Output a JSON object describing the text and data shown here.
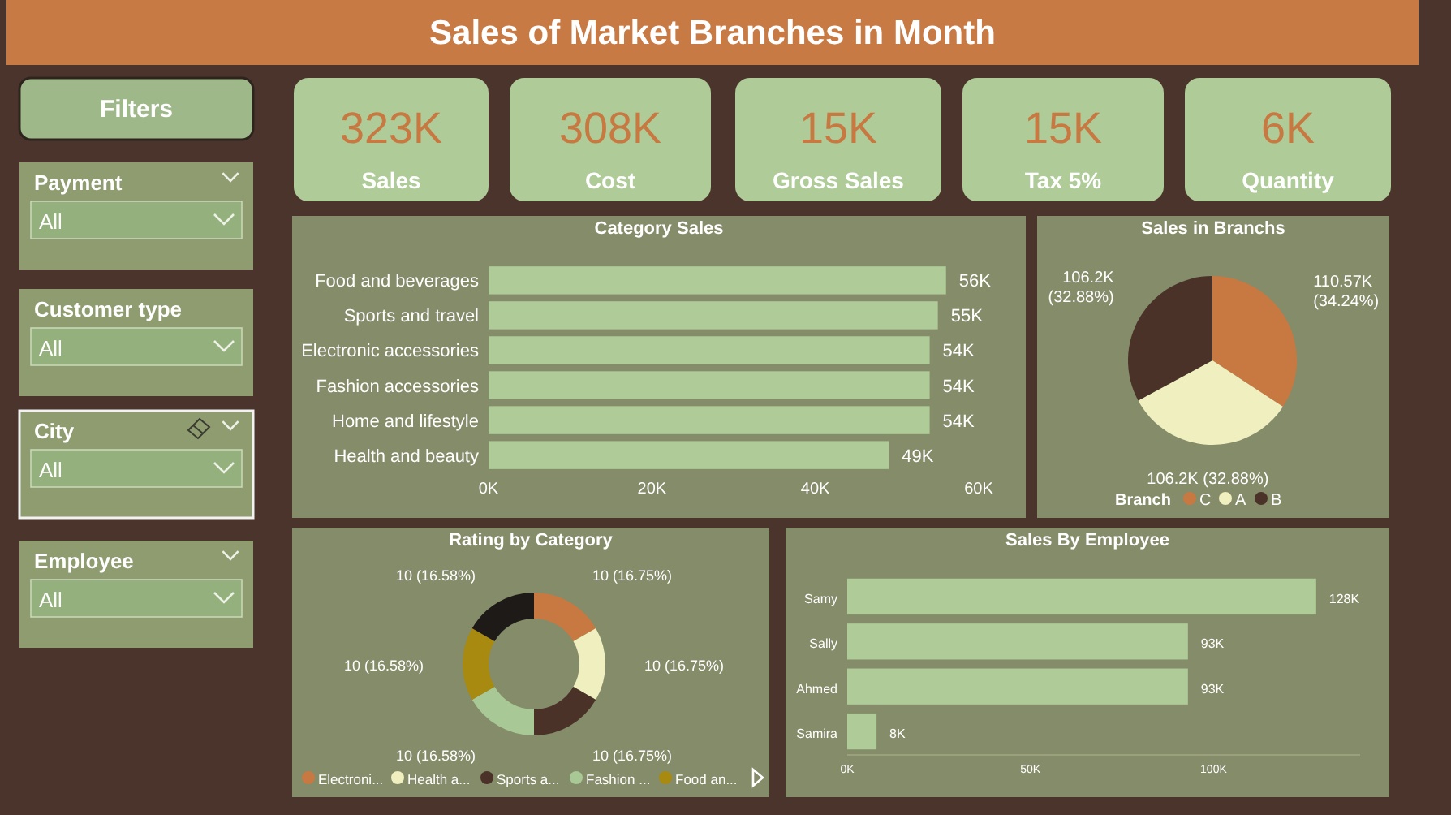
{
  "chart_data": [
    {
      "type": "other",
      "title": "Sales of Market Branches in Month"
    },
    {
      "type": "other",
      "title": "Filters",
      "annotations": [
        "Payment",
        "All",
        "Customer type",
        "All",
        "City",
        "All",
        "Employee",
        "All"
      ]
    },
    {
      "type": "other",
      "annotations": [
        "323K",
        "Sales",
        "308K",
        "Cost",
        "15K",
        "Gross Sales",
        "15K",
        "Tax 5%",
        "6K",
        "Quantity"
      ]
    },
    {
      "type": "bar",
      "orientation": "horizontal",
      "title": "Category Sales",
      "categories": [
        "Food and beverages",
        "Sports and travel",
        "Electronic accessories",
        "Fashion accessories",
        "Home and lifestyle",
        "Health and beauty"
      ],
      "values": [
        56000,
        55000,
        54000,
        54000,
        54000,
        49000
      ],
      "value_labels": [
        "56K",
        "55K",
        "54K",
        "54K",
        "54K",
        "49K"
      ],
      "color": "#aecb98",
      "xlim": [
        0,
        60000
      ],
      "xticks": [
        {
          "value": 0,
          "label": "0K"
        },
        {
          "value": 20000,
          "label": "20K"
        },
        {
          "value": 40000,
          "label": "40K"
        },
        {
          "value": 60000,
          "label": "60K"
        }
      ],
      "grid": false
    },
    {
      "type": "pie",
      "title": "Sales in Branchs",
      "legend_title": "Branch",
      "legend": "bottom",
      "categories": [
        "C",
        "A",
        "B"
      ],
      "values": [
        110570,
        106200,
        106200
      ],
      "value_labels": [
        "110.57K (34.24%)",
        "106.2K (32.88%)",
        "106.2K (32.88%)"
      ],
      "colors": [
        "#c87941",
        "#f0efc0",
        "#4a3228"
      ]
    },
    {
      "type": "donut",
      "title": "Rating by Category",
      "legend": "bottom",
      "categories": [
        "Electroni...",
        "Health a...",
        "Sports a...",
        "Fashion ...",
        "Food an...",
        null
      ],
      "values": [
        10,
        10,
        10,
        10,
        10,
        10
      ],
      "value_labels": [
        "10 (16.75%)",
        "10 (16.75%)",
        "10 (16.75%)",
        "10 (16.58%)",
        "10 (16.58%)",
        "10 (16.58%)"
      ],
      "colors": [
        "#c87941",
        "#f0efc0",
        "#4a3228",
        "#a8c896",
        "#a88a10",
        "#1e1a18"
      ]
    },
    {
      "type": "bar",
      "orientation": "horizontal",
      "title": "Sales By Employee",
      "categories": [
        "Samy",
        "Sally",
        "Ahmed",
        "Samira"
      ],
      "values": [
        128000,
        93000,
        93000,
        8000
      ],
      "value_labels": [
        "128K",
        "93K",
        "93K",
        "8K"
      ],
      "color": "#aecb98",
      "xlim": [
        0,
        140000
      ],
      "xticks": [
        {
          "value": 0,
          "label": "0K"
        },
        {
          "value": 50000,
          "label": "50K"
        },
        {
          "value": 100000,
          "label": "100K"
        }
      ],
      "grid": false
    }
  ]
}
